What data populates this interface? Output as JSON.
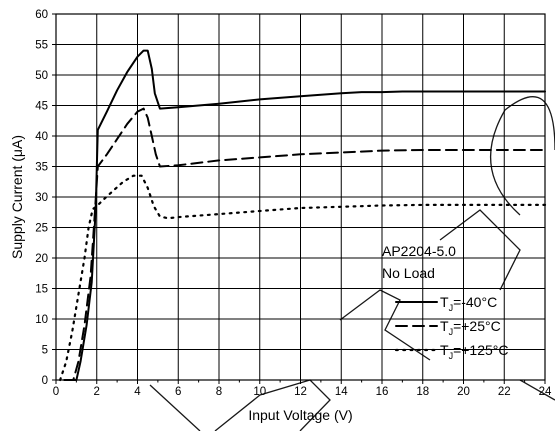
{
  "chart_data": {
    "type": "line",
    "xlabel": "Input Voltage (V)",
    "ylabel": "Supply Current (μA)",
    "xlim": [
      0,
      24
    ],
    "ylim": [
      0,
      60
    ],
    "xticks": [
      0,
      2,
      4,
      6,
      8,
      10,
      12,
      14,
      16,
      18,
      20,
      22,
      24
    ],
    "yticks": [
      0,
      5,
      10,
      15,
      20,
      25,
      30,
      35,
      40,
      45,
      50,
      55,
      60
    ],
    "grid": true,
    "legend_position": "bottom-right",
    "legend_header": [
      "AP2204-5.0",
      "No Load"
    ],
    "series": [
      {
        "name": "TJ=-40°C",
        "label_main": "T",
        "label_sub": "J",
        "label_rest": "=-40°C",
        "style": "solid",
        "x": [
          0.55,
          1.0,
          1.2,
          1.5,
          1.75,
          1.95,
          2.05,
          2.5,
          3.0,
          3.5,
          4.0,
          4.3,
          4.5,
          4.7,
          4.85,
          5.1,
          6,
          7,
          8,
          10,
          12,
          14,
          15,
          16,
          17,
          18,
          20,
          22,
          24
        ],
        "y": [
          0,
          0,
          3,
          9,
          16,
          28,
          41,
          44,
          47.5,
          50.5,
          53,
          54,
          54,
          51,
          47,
          44.5,
          44.7,
          45,
          45.3,
          46,
          46.5,
          47,
          47.2,
          47.2,
          47.3,
          47.3,
          47.3,
          47.3,
          47.3
        ]
      },
      {
        "name": "TJ=+25°C",
        "label_main": "T",
        "label_sub": "J",
        "label_rest": "=+25°C",
        "style": "dashed",
        "x": [
          0.4,
          0.85,
          1.1,
          1.4,
          1.7,
          1.9,
          2.05,
          2.5,
          3.0,
          3.5,
          4.0,
          4.3,
          4.5,
          4.7,
          4.9,
          5.1,
          6,
          8,
          10,
          12,
          14,
          16,
          18,
          20,
          22,
          24
        ],
        "y": [
          0,
          0,
          3,
          9,
          17,
          27,
          35,
          37,
          39.5,
          42,
          44,
          44.5,
          43,
          40,
          37,
          35,
          35.2,
          36,
          36.5,
          37,
          37.3,
          37.6,
          37.7,
          37.7,
          37.7,
          37.7
        ]
      },
      {
        "name": "TJ=+125°C",
        "label_main": "T",
        "label_sub": "J",
        "label_rest": "=+125°C",
        "style": "dotted",
        "x": [
          0.2,
          0.5,
          0.8,
          1.1,
          1.4,
          1.6,
          1.8,
          2.0,
          2.3,
          2.8,
          3.3,
          3.8,
          4.2,
          4.5,
          4.8,
          5.1,
          5.5,
          6,
          8,
          10,
          12,
          14,
          16,
          18,
          20,
          22,
          24
        ],
        "y": [
          0,
          3,
          8,
          14,
          20,
          25,
          28,
          28.5,
          29.5,
          31,
          32.5,
          33.5,
          33.5,
          31.5,
          28.5,
          26.8,
          26.5,
          26.7,
          27.2,
          27.7,
          28.2,
          28.4,
          28.6,
          28.7,
          28.7,
          28.7,
          28.7
        ]
      }
    ]
  }
}
